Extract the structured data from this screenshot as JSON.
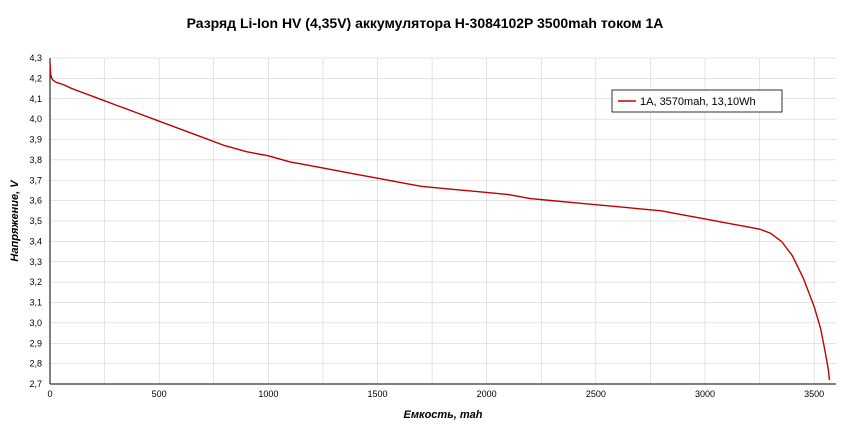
{
  "chart_data": {
    "type": "line",
    "title": "Разряд Li-Ion HV (4,35V) аккумулятора H-3084102P 3500mah током 1A",
    "xlabel": "Емкость, mah",
    "ylabel": "Напряжение, V",
    "xlim": [
      0,
      3600
    ],
    "ylim": [
      2.7,
      4.3
    ],
    "x_ticks": [
      0,
      500,
      1000,
      1500,
      2000,
      2500,
      3000,
      3500
    ],
    "y_ticks": [
      2.7,
      2.8,
      2.9,
      3.0,
      3.1,
      3.2,
      3.3,
      3.4,
      3.5,
      3.6,
      3.7,
      3.8,
      3.9,
      4.0,
      4.1,
      4.2,
      4.3
    ],
    "y_tick_labels": [
      "2,7",
      "2,8",
      "2,9",
      "3,0",
      "3,1",
      "3,2",
      "3,3",
      "3,4",
      "3,5",
      "3,6",
      "3,7",
      "3,8",
      "3,9",
      "4,0",
      "4,1",
      "4,2",
      "4,3"
    ],
    "grid": true,
    "legend_position": "top-right",
    "line_color": "#c00000",
    "series": [
      {
        "name": "1A, 3570mah, 13,10Wh",
        "x": [
          0,
          3,
          8,
          15,
          30,
          60,
          100,
          150,
          200,
          250,
          300,
          400,
          500,
          600,
          700,
          800,
          900,
          1000,
          1100,
          1200,
          1300,
          1400,
          1500,
          1600,
          1700,
          1800,
          1900,
          2000,
          2100,
          2200,
          2300,
          2400,
          2500,
          2600,
          2700,
          2800,
          2900,
          3000,
          3100,
          3200,
          3250,
          3300,
          3350,
          3400,
          3450,
          3500,
          3530,
          3550,
          3565,
          3570
        ],
        "y": [
          4.28,
          4.22,
          4.2,
          4.19,
          4.18,
          4.17,
          4.15,
          4.13,
          4.11,
          4.09,
          4.07,
          4.03,
          3.99,
          3.95,
          3.91,
          3.87,
          3.84,
          3.82,
          3.79,
          3.77,
          3.75,
          3.73,
          3.71,
          3.69,
          3.67,
          3.66,
          3.65,
          3.64,
          3.63,
          3.61,
          3.6,
          3.59,
          3.58,
          3.57,
          3.56,
          3.55,
          3.53,
          3.51,
          3.49,
          3.47,
          3.46,
          3.44,
          3.4,
          3.33,
          3.22,
          3.08,
          2.97,
          2.86,
          2.77,
          2.72
        ]
      }
    ]
  }
}
